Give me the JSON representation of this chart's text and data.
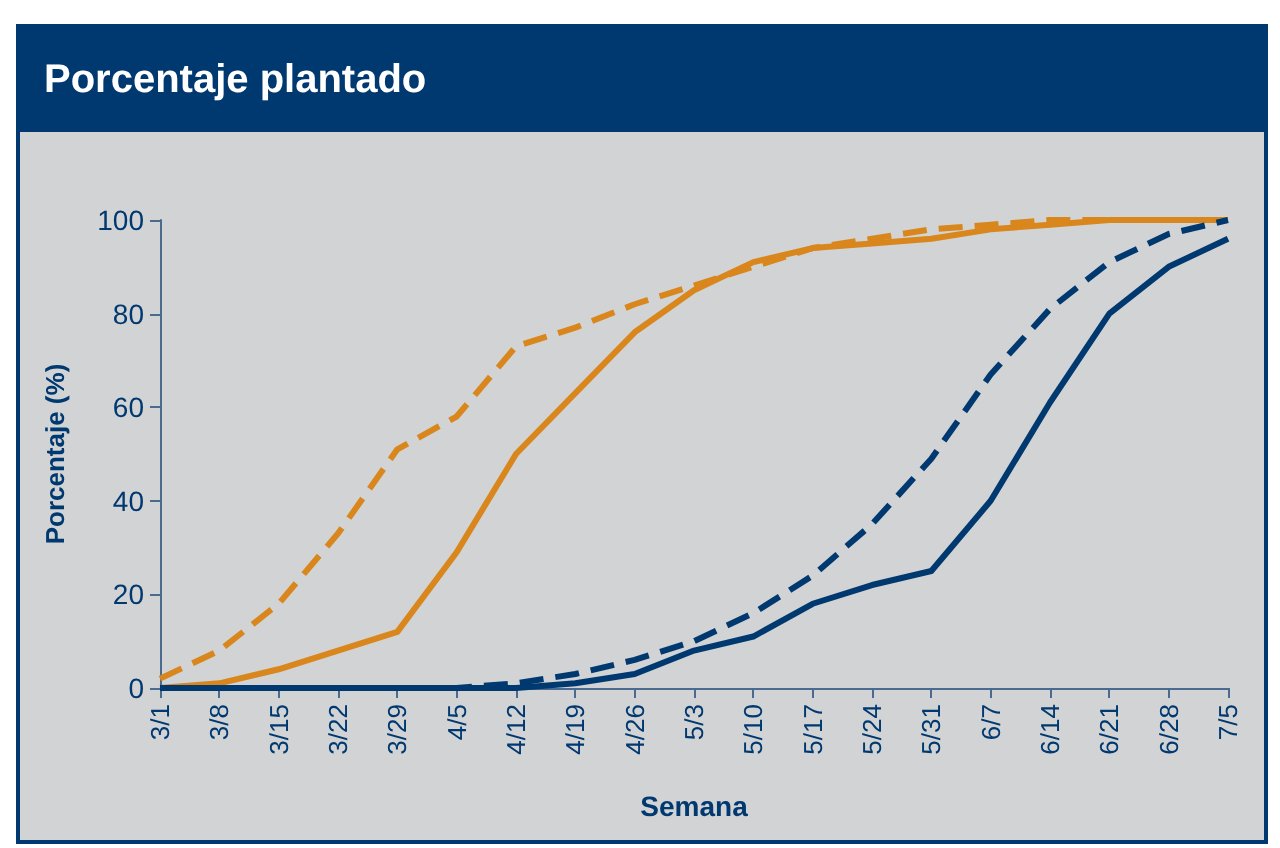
{
  "chart_data": {
    "type": "line",
    "title": "Porcentaje plantado",
    "xlabel": "Semana",
    "ylabel": "Porcentaje (%)",
    "categories": [
      "3/1",
      "3/8",
      "3/15",
      "3/22",
      "3/29",
      "4/5",
      "4/12",
      "4/19",
      "4/26",
      "5/3",
      "5/10",
      "5/17",
      "5/24",
      "5/31",
      "6/7",
      "6/14",
      "6/21",
      "6/28",
      "7/5"
    ],
    "series": [
      {
        "color": "#d9861c",
        "line_style": "solid",
        "values": [
          0,
          1,
          4,
          8,
          12,
          29,
          50,
          63,
          76,
          85,
          91,
          94,
          95,
          96,
          98,
          99,
          100,
          100,
          100
        ]
      },
      {
        "color": "#d9861c",
        "line_style": "dashed",
        "values": [
          2,
          8,
          18,
          33,
          51,
          58,
          73,
          77,
          82,
          86,
          90,
          94,
          96,
          98,
          99,
          100,
          100,
          100,
          100
        ]
      },
      {
        "color": "#003870",
        "line_style": "solid",
        "values": [
          0,
          0,
          0,
          0,
          0,
          0,
          0,
          1,
          3,
          8,
          11,
          18,
          22,
          25,
          40,
          61,
          80,
          90,
          96
        ]
      },
      {
        "color": "#003870",
        "line_style": "dashed",
        "values": [
          0,
          0,
          0,
          0,
          0,
          0,
          1,
          3,
          6,
          10,
          16,
          24,
          35,
          49,
          67,
          81,
          91,
          97,
          100
        ]
      }
    ],
    "ylim": [
      0,
      100
    ],
    "yticks": [
      0,
      20,
      40,
      60,
      80,
      100
    ],
    "grid": false,
    "marker": "none"
  }
}
